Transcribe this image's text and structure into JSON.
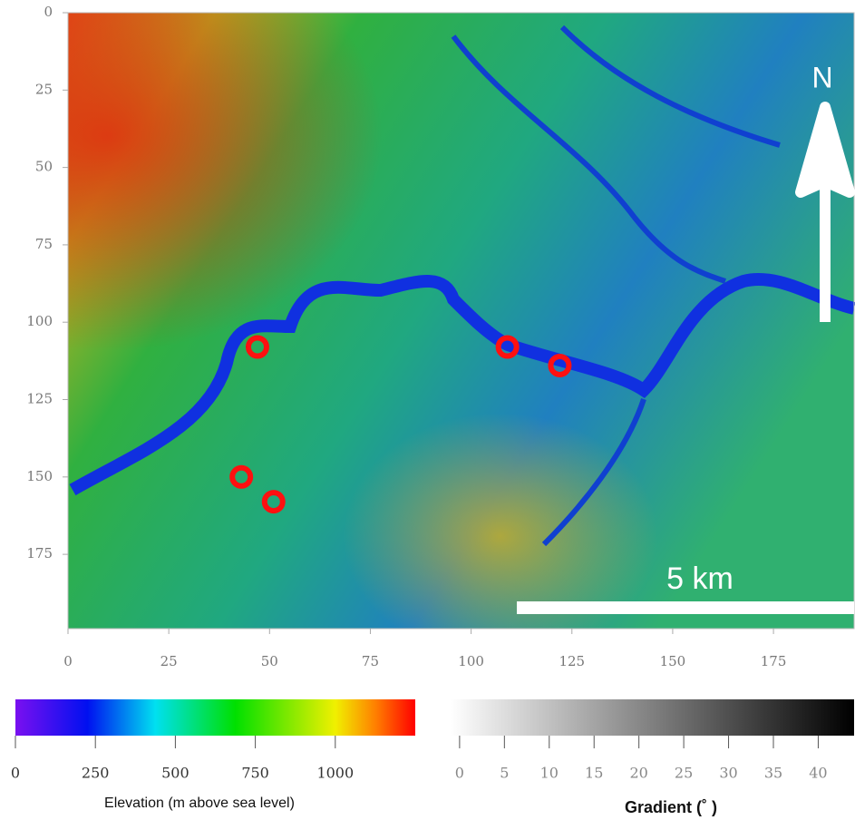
{
  "map": {
    "xlim": [
      0,
      195
    ],
    "ylim": [
      0,
      199
    ],
    "xticks": [
      0,
      25,
      50,
      75,
      100,
      125,
      150,
      175
    ],
    "yticks": [
      0,
      25,
      50,
      75,
      100,
      125,
      150,
      175
    ],
    "sites": {
      "x": [
        47,
        109,
        122,
        43,
        51
      ],
      "y": [
        108,
        108,
        114,
        150,
        158
      ]
    },
    "north_label": "N",
    "scale_bar_label": "5 km"
  },
  "elevation_colorbar": {
    "lim": [
      0,
      1250
    ],
    "ticks": [
      0,
      250,
      500,
      750,
      1000
    ],
    "label": "Elevation (m above sea level)"
  },
  "gradient_colorbar": {
    "lim": [
      -1,
      44
    ],
    "ticks": [
      0,
      5,
      10,
      15,
      20,
      25,
      30,
      35,
      40
    ],
    "label": "Gradient (˚ )"
  }
}
